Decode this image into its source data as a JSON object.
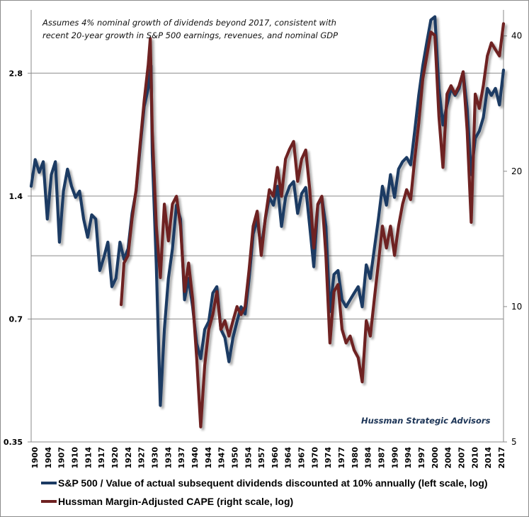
{
  "chart_data": {
    "type": "line",
    "title": "",
    "annotations": [
      "Assumes 4% nominal growth of dividends beyond 2017, consistent with",
      "recent 20-year growth in S&P 500 earnings, revenues, and nominal GDP"
    ],
    "watermark": "Hussman Strategic Advisors",
    "xlabel": "",
    "ylabel_left": "",
    "ylabel_right": "",
    "x_range": [
      1900,
      2017
    ],
    "x_tick_labels": [
      "1900",
      "1904",
      "1907",
      "1910",
      "1914",
      "1917",
      "1920",
      "1924",
      "1927",
      "1930",
      "1934",
      "1937",
      "1940",
      "1944",
      "1947",
      "1950",
      "1954",
      "1957",
      "1960",
      "1964",
      "1967",
      "1970",
      "1974",
      "1977",
      "1980",
      "1984",
      "1987",
      "1990",
      "1994",
      "1997",
      "2000",
      "2004",
      "2007",
      "2010",
      "2014",
      "2017"
    ],
    "y_left": {
      "scale": "log",
      "range": [
        0.35,
        4.0
      ],
      "ticks": [
        0.35,
        0.7,
        1.4,
        2.8
      ],
      "tick_labels": [
        "0.35",
        "0.7",
        "1.4",
        "2.8"
      ]
    },
    "y_right": {
      "scale": "log",
      "range": [
        5,
        45.7
      ],
      "ticks": [
        5,
        10,
        20,
        40
      ],
      "tick_labels": [
        "5",
        "10",
        "20",
        "40"
      ]
    },
    "grid": true,
    "gridlines_left": [
      0.7,
      1.0,
      1.4,
      2.8
    ],
    "legend_position": "bottom",
    "series": [
      {
        "name": "S&P 500 / Value of actual subsequent dividends discounted at 10% annually (left scale, log)",
        "axis": "left",
        "color": "#1b3a63",
        "x": [
          1900,
          1901,
          1902,
          1903,
          1904,
          1905,
          1906,
          1907,
          1908,
          1909,
          1910,
          1911,
          1912,
          1913,
          1914,
          1915,
          1916,
          1917,
          1918,
          1919,
          1920,
          1921,
          1922,
          1923,
          1924,
          1925,
          1926,
          1927,
          1928,
          1929,
          1929.7,
          1930,
          1931,
          1932,
          1933,
          1934,
          1935,
          1936,
          1937,
          1938,
          1939,
          1940,
          1941,
          1942,
          1943,
          1944,
          1945,
          1946,
          1947,
          1948,
          1949,
          1950,
          1951,
          1952,
          1953,
          1954,
          1955,
          1956,
          1957,
          1958,
          1959,
          1960,
          1961,
          1962,
          1963,
          1964,
          1965,
          1966,
          1967,
          1968,
          1969,
          1970,
          1971,
          1972,
          1973,
          1974,
          1975,
          1976,
          1977,
          1978,
          1979,
          1980,
          1981,
          1982,
          1983,
          1984,
          1985,
          1986,
          1987,
          1988,
          1989,
          1990,
          1991,
          1992,
          1993,
          1994,
          1995,
          1996,
          1997,
          1998,
          1999,
          2000,
          2001,
          2002,
          2003,
          2004,
          2005,
          2006,
          2007,
          2008,
          2009,
          2010,
          2011,
          2012,
          2013,
          2014,
          2015,
          2016,
          2017
        ],
        "values": [
          1.48,
          1.72,
          1.6,
          1.7,
          1.23,
          1.58,
          1.7,
          1.08,
          1.44,
          1.63,
          1.48,
          1.39,
          1.44,
          1.23,
          1.11,
          1.26,
          1.23,
          0.92,
          0.99,
          1.08,
          0.84,
          0.88,
          1.08,
          0.98,
          1.04,
          1.27,
          1.44,
          1.84,
          2.32,
          2.57,
          2.92,
          1.78,
          0.95,
          0.43,
          0.66,
          0.88,
          1.04,
          1.33,
          1.23,
          0.78,
          0.88,
          0.75,
          0.61,
          0.56,
          0.66,
          0.69,
          0.81,
          0.84,
          0.66,
          0.63,
          0.55,
          0.63,
          0.69,
          0.75,
          0.72,
          0.88,
          1.13,
          1.23,
          1.04,
          1.23,
          1.39,
          1.33,
          1.48,
          1.18,
          1.39,
          1.48,
          1.52,
          1.27,
          1.42,
          1.47,
          1.18,
          0.94,
          1.33,
          1.39,
          1.18,
          0.73,
          0.9,
          0.92,
          0.78,
          0.75,
          0.78,
          0.81,
          0.84,
          0.75,
          0.95,
          0.88,
          1.04,
          1.23,
          1.48,
          1.33,
          1.58,
          1.39,
          1.63,
          1.7,
          1.74,
          1.67,
          2.02,
          2.47,
          2.92,
          3.33,
          3.78,
          3.85,
          2.57,
          2.09,
          2.34,
          2.57,
          2.47,
          2.57,
          2.82,
          2.29,
          1.58,
          1.94,
          2.02,
          2.18,
          2.57,
          2.47,
          2.57,
          2.34,
          2.85
        ]
      },
      {
        "name": "Hussman Margin-Adjusted CAPE (right scale, log)",
        "axis": "right",
        "color": "#6e2121",
        "x": [
          1922.3,
          1923,
          1924,
          1925,
          1926,
          1927,
          1928,
          1929,
          1929.5,
          1930,
          1931,
          1932,
          1933,
          1934,
          1935,
          1936,
          1937,
          1938,
          1939,
          1940,
          1941,
          1942,
          1943,
          1944,
          1945,
          1946,
          1947,
          1948,
          1949,
          1950,
          1951,
          1952,
          1953,
          1954,
          1955,
          1956,
          1957,
          1958,
          1959,
          1960,
          1961,
          1962,
          1963,
          1964,
          1965,
          1966,
          1967,
          1968,
          1969,
          1970,
          1971,
          1972,
          1973,
          1974,
          1975,
          1976,
          1977,
          1978,
          1979,
          1980,
          1981,
          1982,
          1983,
          1984,
          1985,
          1986,
          1987,
          1988,
          1989,
          1990,
          1991,
          1992,
          1993,
          1994,
          1995,
          1996,
          1997,
          1998,
          1999,
          2000,
          2001,
          2002,
          2003,
          2004,
          2005,
          2006,
          2007,
          2008,
          2009,
          2010,
          2011,
          2012,
          2013,
          2014,
          2015,
          2016,
          2017
        ],
        "values": [
          10.1,
          12.5,
          13.0,
          15.7,
          18.2,
          23.0,
          28.7,
          34.5,
          39.5,
          24.6,
          15.1,
          11.6,
          16.9,
          14.0,
          16.9,
          17.6,
          15.1,
          10.8,
          12.5,
          10.4,
          7.7,
          5.4,
          7.4,
          8.9,
          9.6,
          10.8,
          8.9,
          9.3,
          8.6,
          9.3,
          10.0,
          9.6,
          10.0,
          12.1,
          15.1,
          16.3,
          13.0,
          15.7,
          18.2,
          17.6,
          20.4,
          17.6,
          21.3,
          22.4,
          23.3,
          19.0,
          21.3,
          22.3,
          18.2,
          13.5,
          16.9,
          17.6,
          13.0,
          8.3,
          10.8,
          11.2,
          8.9,
          8.3,
          8.6,
          8.0,
          7.7,
          6.8,
          9.3,
          8.6,
          10.4,
          12.5,
          15.1,
          13.5,
          15.1,
          13.0,
          15.1,
          16.9,
          18.2,
          17.3,
          21.3,
          25.6,
          32.1,
          36.1,
          40.8,
          40.1,
          26.5,
          20.4,
          29.7,
          31.0,
          29.7,
          31.0,
          33.3,
          24.6,
          15.4,
          29.7,
          27.6,
          31.0,
          36.1,
          38.6,
          37.3,
          36.1,
          42.6
        ]
      }
    ]
  }
}
